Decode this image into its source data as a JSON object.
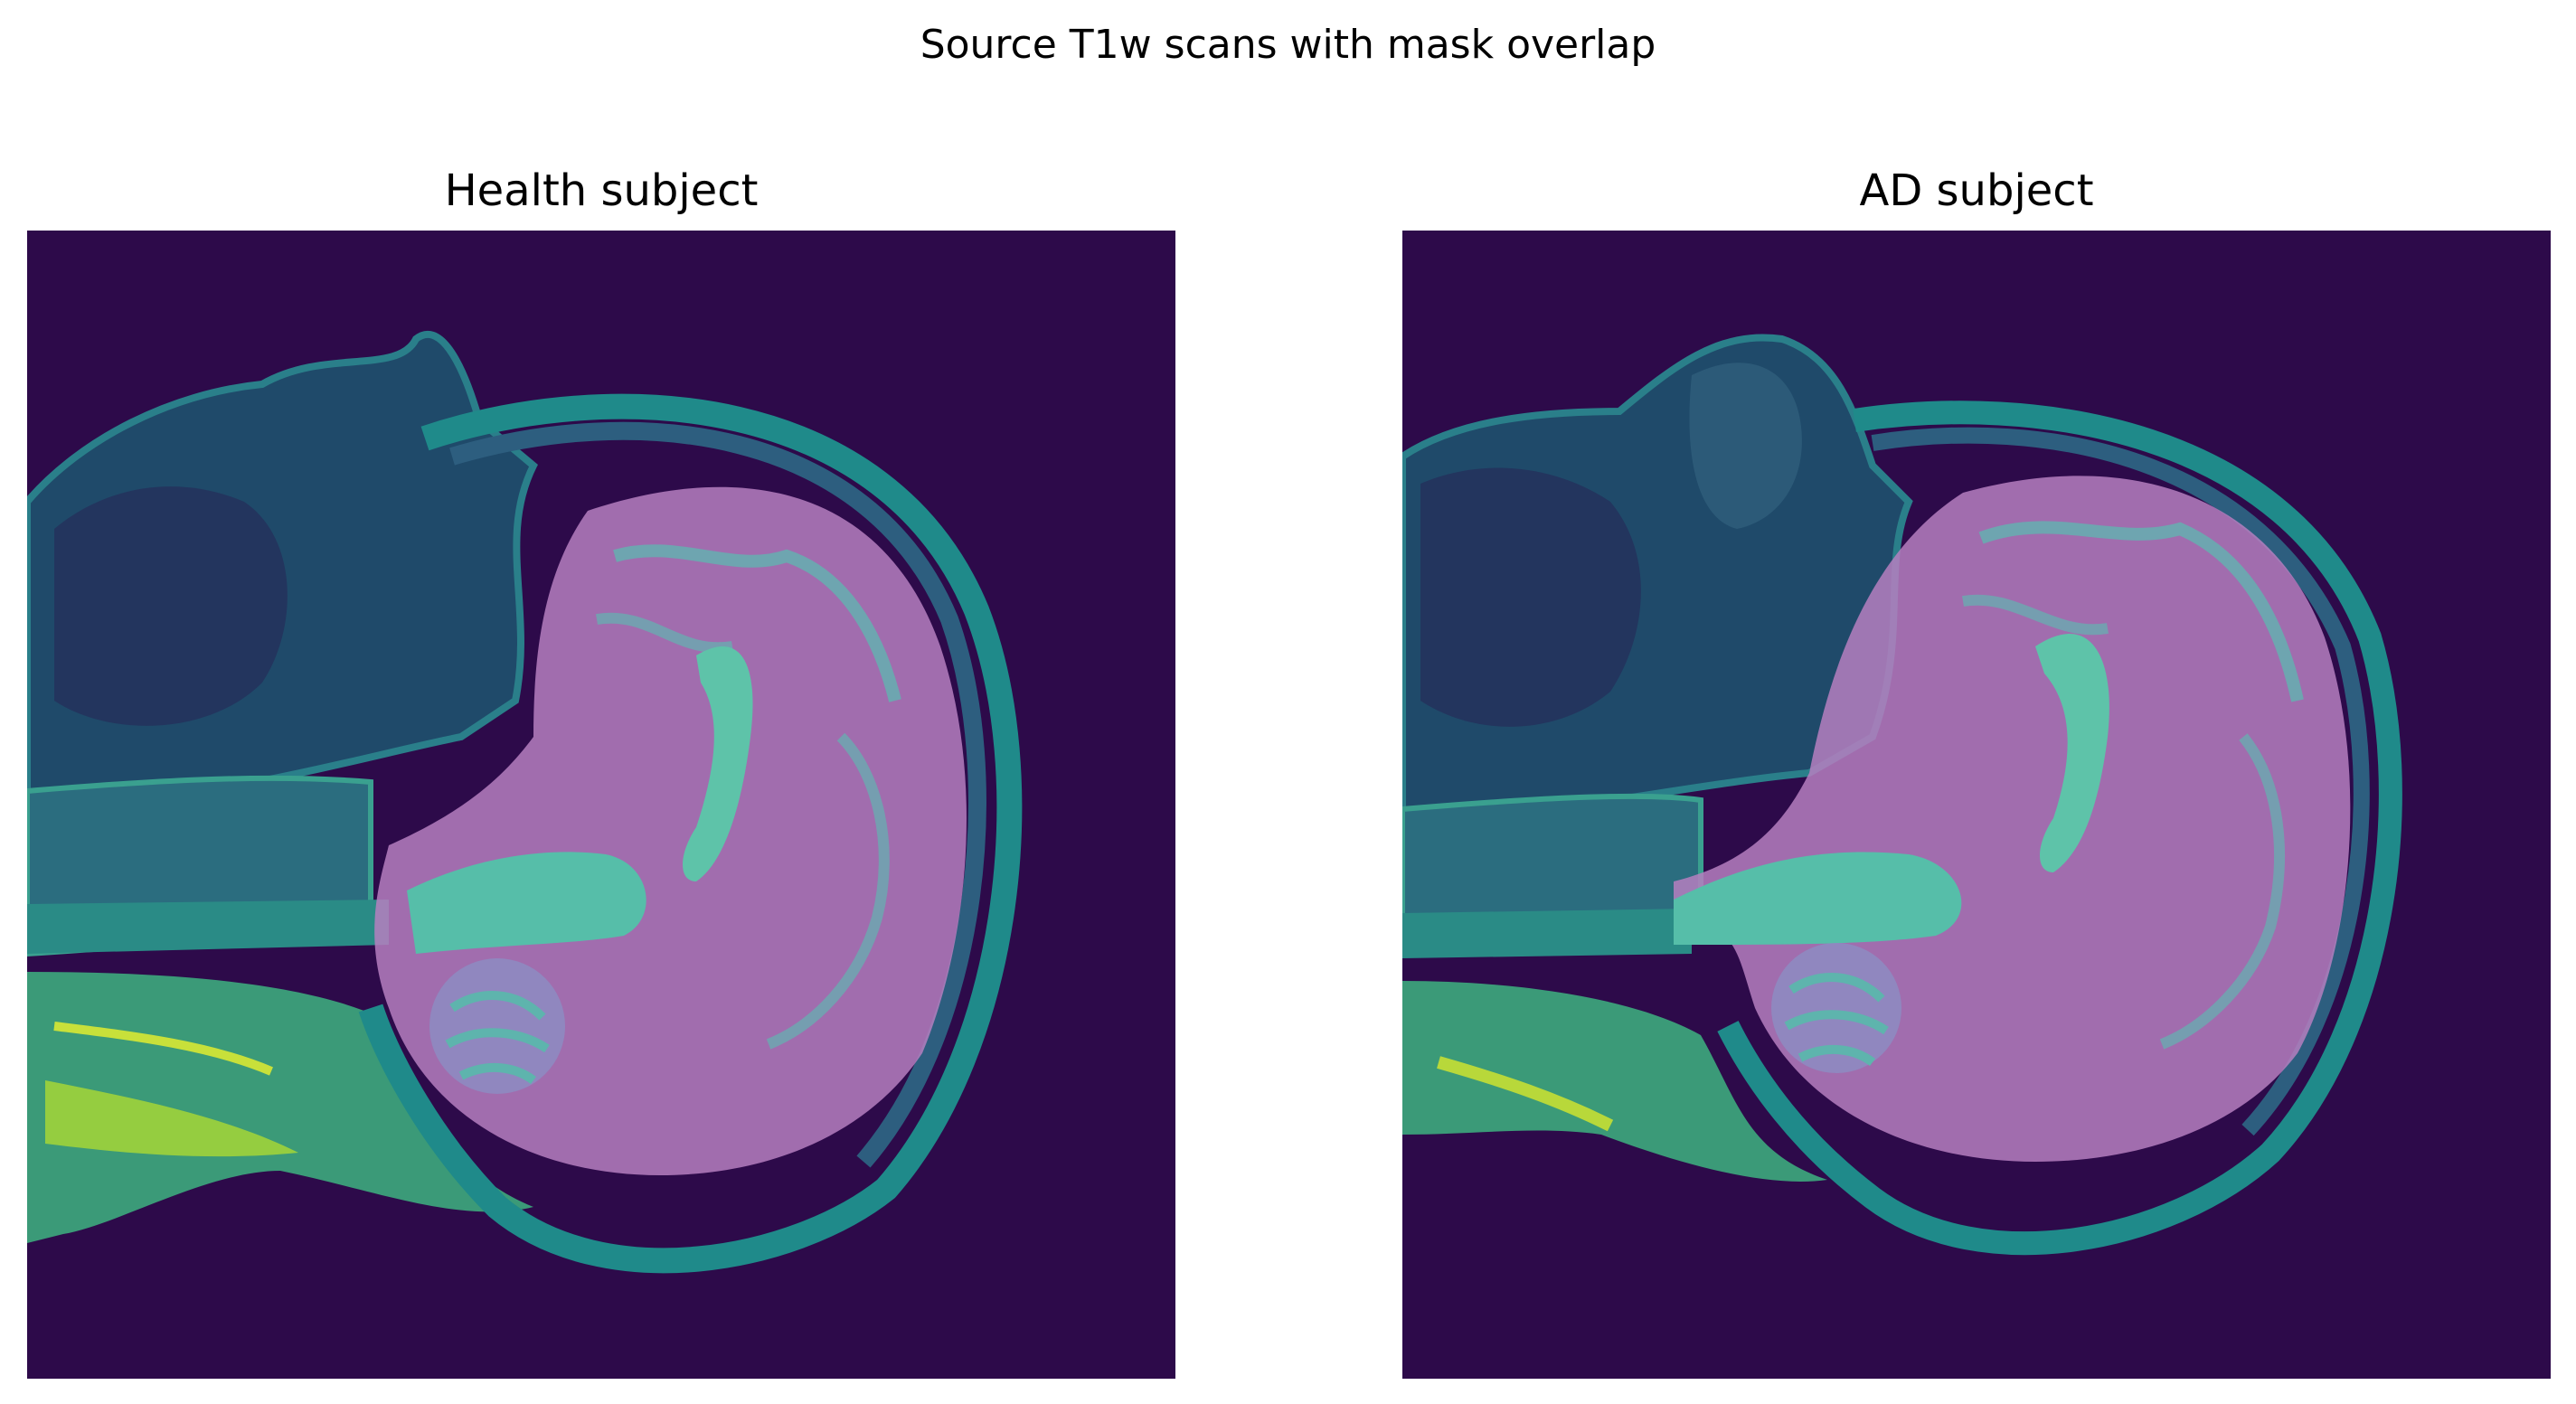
{
  "figure": {
    "title": "Source T1w scans with mask overlap"
  },
  "panels": [
    {
      "title": "Health subject",
      "image": "sagittal-brain-mri-scan-viridis-with-pink-brain-mask",
      "colors": {
        "background": "#2d0a4a",
        "tissue": "#27717f",
        "bright-tissue": "#a6d636",
        "mask": "#d58fd4",
        "white-matter": "#5ec3a9"
      }
    },
    {
      "title": "AD subject",
      "image": "sagittal-brain-mri-scan-viridis-with-pink-brain-mask",
      "colors": {
        "background": "#2d0a4a",
        "tissue": "#27717f",
        "bright-tissue": "#a6d636",
        "mask": "#d58fd4",
        "white-matter": "#5ec3a9"
      }
    }
  ]
}
